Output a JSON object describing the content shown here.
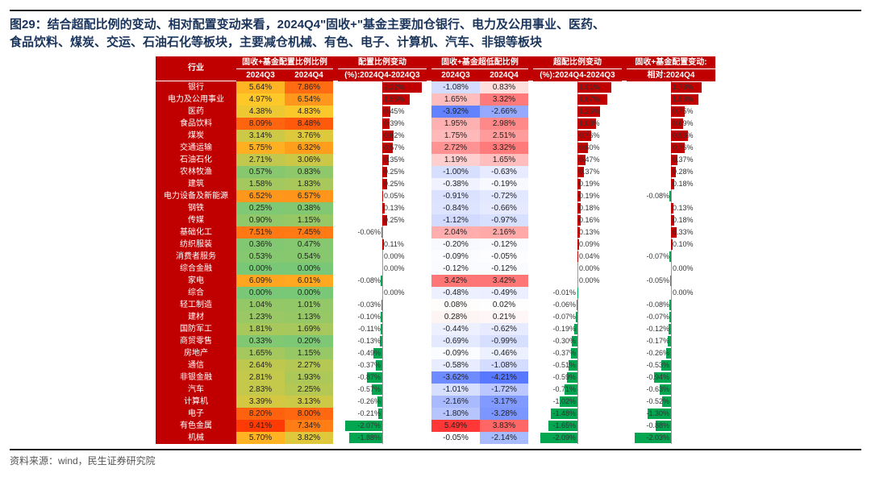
{
  "title_line1": "图29：结合超配比例的变动、相对配置变动来看，2024Q4\"固收+\"基金主要加仓银行、电力及公用事业、医药、",
  "title_line2": "食品饮料、煤炭、交运、石油石化等板块，主要减仓机械、有色、电子、计算机、汽车、非银等板块",
  "source": "资料来源：wind，民生证券研究院",
  "colors": {
    "header_bg": "#c00000",
    "bar_pos": "#c00000",
    "bar_neg": "#00a650"
  },
  "columns": {
    "industry": "行业",
    "g1": "固收+基金配置比例比例",
    "g1a": "2024Q3",
    "g1b": "2024Q4",
    "g2": "配置比例变动",
    "g2s": "(%):2024Q4-2024Q3",
    "g3": "固收+基金超低配比例",
    "g3a": "2024Q3",
    "g3b": "2024Q4",
    "g4": "超配比例变动",
    "g4s": "(%):2024Q4-2024Q3",
    "g5": "固收+基金配置变动:",
    "g5s": "相对:2024Q4"
  },
  "bar_ranges": {
    "g2": {
      "min": -2.5,
      "max": 2.5
    },
    "g4": {
      "min": -2.5,
      "max": 2.5
    },
    "g5": {
      "min": -2.5,
      "max": 2.5
    }
  },
  "heat": {
    "alloc_min": 0,
    "alloc_max": 10,
    "ul_min": -5,
    "ul_max": 5
  },
  "rows": [
    {
      "name": "银行",
      "q3": 5.64,
      "q4": 7.86,
      "dAlloc": 2.22,
      "ulq3": -1.08,
      "ulq4": 0.83,
      "dUL": 1.91,
      "rel": 1.73
    },
    {
      "name": "电力及公用事业",
      "q3": 4.97,
      "q4": 6.54,
      "dAlloc": 1.56,
      "ulq3": 1.65,
      "ulq4": 3.32,
      "dUL": 1.67,
      "rel": 1.53
    },
    {
      "name": "医药",
      "q3": 4.38,
      "q4": 4.83,
      "dAlloc": 0.45,
      "ulq3": -3.92,
      "ulq4": -2.66,
      "dUL": 1.26,
      "rel": 0.75
    },
    {
      "name": "食品饮料",
      "q3": 8.09,
      "q4": 8.48,
      "dAlloc": 0.39,
      "ulq3": 1.95,
      "ulq4": 2.98,
      "dUL": 1.03,
      "rel": 0.69
    },
    {
      "name": "煤炭",
      "q3": 3.14,
      "q4": 3.76,
      "dAlloc": 0.62,
      "ulq3": 1.75,
      "ulq4": 2.51,
      "dUL": 0.76,
      "rel": 0.96
    },
    {
      "name": "交通运输",
      "q3": 5.75,
      "q4": 6.32,
      "dAlloc": 0.57,
      "ulq3": 2.72,
      "ulq4": 3.32,
      "dUL": 0.6,
      "rel": 0.76
    },
    {
      "name": "石油石化",
      "q3": 2.71,
      "q4": 3.06,
      "dAlloc": 0.35,
      "ulq3": 1.19,
      "ulq4": 1.65,
      "dUL": 0.47,
      "rel": 0.37
    },
    {
      "name": "农林牧渔",
      "q3": 0.57,
      "q4": 0.83,
      "dAlloc": 0.25,
      "ulq3": -1.0,
      "ulq4": -0.63,
      "dUL": 0.37,
      "rel": 0.28
    },
    {
      "name": "建筑",
      "q3": 1.58,
      "q4": 1.83,
      "dAlloc": 0.25,
      "ulq3": -0.38,
      "ulq4": -0.19,
      "dUL": 0.19,
      "rel": 0.18
    },
    {
      "name": "电力设备及新能源",
      "q3": 6.52,
      "q4": 6.57,
      "dAlloc": 0.05,
      "ulq3": -0.91,
      "ulq4": -0.72,
      "dUL": 0.19,
      "rel": -0.08
    },
    {
      "name": "钢铁",
      "q3": 0.25,
      "q4": 0.38,
      "dAlloc": 0.13,
      "ulq3": -0.84,
      "ulq4": -0.66,
      "dUL": 0.18,
      "rel": 0.13
    },
    {
      "name": "传媒",
      "q3": 0.9,
      "q4": 1.15,
      "dAlloc": 0.25,
      "ulq3": -1.12,
      "ulq4": -0.97,
      "dUL": 0.16,
      "rel": 0.18
    },
    {
      "name": "基础化工",
      "q3": 7.51,
      "q4": 7.45,
      "dAlloc": -0.06,
      "ulq3": 2.04,
      "ulq4": 2.16,
      "dUL": 0.13,
      "rel": 0.33
    },
    {
      "name": "纺织服装",
      "q3": 0.36,
      "q4": 0.47,
      "dAlloc": 0.11,
      "ulq3": -0.2,
      "ulq4": -0.12,
      "dUL": 0.09,
      "rel": 0.1
    },
    {
      "name": "消费者服务",
      "q3": 0.53,
      "q4": 0.54,
      "dAlloc": 0.0,
      "ulq3": -0.09,
      "ulq4": -0.05,
      "dUL": 0.04,
      "rel": -0.07
    },
    {
      "name": "综合金融",
      "q3": 0.0,
      "q4": 0.0,
      "dAlloc": 0.0,
      "ulq3": -0.12,
      "ulq4": -0.12,
      "dUL": 0.0,
      "rel": 0.0
    },
    {
      "name": "家电",
      "q3": 6.09,
      "q4": 6.01,
      "dAlloc": -0.08,
      "ulq3": 3.42,
      "ulq4": 3.42,
      "dUL": 0.0,
      "rel": -0.05
    },
    {
      "name": "综合",
      "q3": 0.0,
      "q4": 0.0,
      "dAlloc": 0.0,
      "ulq3": -0.48,
      "ulq4": -0.49,
      "dUL": -0.01,
      "rel": 0.0
    },
    {
      "name": "轻工制造",
      "q3": 1.04,
      "q4": 1.01,
      "dAlloc": -0.03,
      "ulq3": 0.08,
      "ulq4": 0.02,
      "dUL": -0.06,
      "rel": -0.08
    },
    {
      "name": "建材",
      "q3": 1.23,
      "q4": 1.13,
      "dAlloc": -0.1,
      "ulq3": 0.28,
      "ulq4": 0.21,
      "dUL": -0.07,
      "rel": -0.07
    },
    {
      "name": "国防军工",
      "q3": 1.81,
      "q4": 1.69,
      "dAlloc": -0.11,
      "ulq3": -0.44,
      "ulq4": -0.62,
      "dUL": -0.19,
      "rel": -0.12
    },
    {
      "name": "商贸零售",
      "q3": 0.33,
      "q4": 0.2,
      "dAlloc": -0.13,
      "ulq3": -0.69,
      "ulq4": -0.99,
      "dUL": -0.3,
      "rel": -0.17
    },
    {
      "name": "房地产",
      "q3": 1.65,
      "q4": 1.15,
      "dAlloc": -0.49,
      "ulq3": -0.09,
      "ulq4": -0.46,
      "dUL": -0.37,
      "rel": -0.26
    },
    {
      "name": "通信",
      "q3": 2.64,
      "q4": 2.27,
      "dAlloc": -0.37,
      "ulq3": -0.58,
      "ulq4": -1.08,
      "dUL": -0.51,
      "rel": -0.53
    },
    {
      "name": "非银金融",
      "q3": 2.81,
      "q4": 1.93,
      "dAlloc": -0.87,
      "ulq3": -3.62,
      "ulq4": -4.21,
      "dUL": -0.59,
      "rel": -0.94
    },
    {
      "name": "汽车",
      "q3": 2.83,
      "q4": 2.25,
      "dAlloc": -0.57,
      "ulq3": -1.01,
      "ulq4": -1.72,
      "dUL": -0.71,
      "rel": -0.63
    },
    {
      "name": "计算机",
      "q3": 3.39,
      "q4": 3.13,
      "dAlloc": -0.26,
      "ulq3": -2.16,
      "ulq4": -3.17,
      "dUL": -1.02,
      "rel": -0.52
    },
    {
      "name": "电子",
      "q3": 8.2,
      "q4": 8.0,
      "dAlloc": -0.21,
      "ulq3": -1.8,
      "ulq4": -3.28,
      "dUL": -1.48,
      "rel": -1.3
    },
    {
      "name": "有色金属",
      "q3": 9.41,
      "q4": 7.34,
      "dAlloc": -2.07,
      "ulq3": 5.49,
      "ulq4": 3.83,
      "dUL": -1.65,
      "rel": -0.88
    },
    {
      "name": "机械",
      "q3": 5.7,
      "q4": 3.82,
      "dAlloc": -1.88,
      "ulq3": -0.05,
      "ulq4": -2.14,
      "dUL": -2.09,
      "rel": -2.03
    }
  ]
}
